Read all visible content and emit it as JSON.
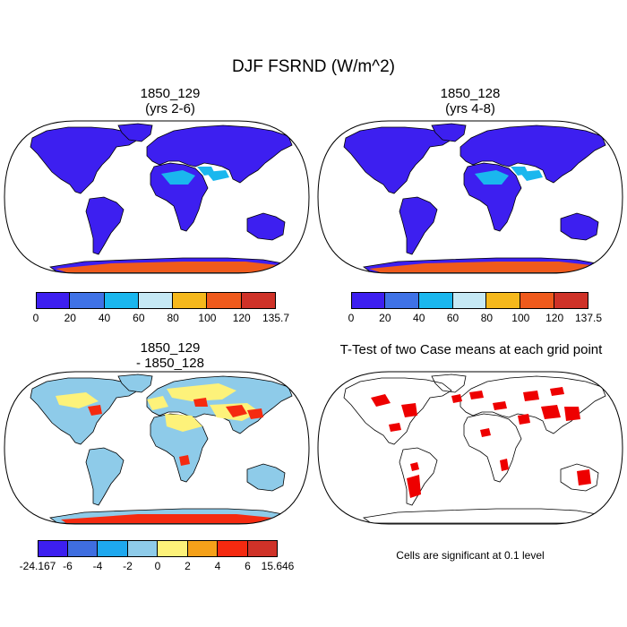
{
  "figure": {
    "title": "DJF FSRND (W/m^2)"
  },
  "panels": [
    {
      "id": "case1",
      "title_line1": "1850_129",
      "title_line2": "(yrs 2-6)",
      "colorbar": {
        "labels": [
          "0",
          "20",
          "40",
          "60",
          "80",
          "100",
          "120",
          "135.7"
        ],
        "colors": [
          "#3d1ff0",
          "#3f72e6",
          "#1ab7ee",
          "#c6e9f5",
          "#f5b81c",
          "#ef5a1c",
          "#cf3228"
        ]
      }
    },
    {
      "id": "case2",
      "title_line1": "1850_128",
      "title_line2": "(yrs 4-8)",
      "colorbar": {
        "labels": [
          "0",
          "20",
          "40",
          "60",
          "80",
          "100",
          "120",
          "137.5"
        ],
        "colors": [
          "#3d1ff0",
          "#3f72e6",
          "#1ab7ee",
          "#c6e9f5",
          "#f5b81c",
          "#ef5a1c",
          "#cf3228"
        ]
      }
    },
    {
      "id": "difference",
      "title_line1": "1850_129",
      "title_line2": "- 1850_128",
      "colorbar": {
        "labels": [
          "-24.167",
          "-6",
          "-4",
          "-2",
          "0",
          "2",
          "4",
          "6",
          "15.646"
        ],
        "colors": [
          "#3d1ff0",
          "#3f6ee0",
          "#1ea8ee",
          "#8ecbe9",
          "#fdf27a",
          "#f5a11a",
          "#f52a10",
          "#cf3228"
        ]
      }
    },
    {
      "id": "ttest",
      "title_line1": "T-Test of two Case means at each grid point",
      "title_line2": "",
      "note": "Cells are significant at 0.1 level",
      "significant_color": "#ee0000"
    }
  ],
  "map_colors": {
    "land_low": "#3d1ff0",
    "land_mid": "#1ab7ee",
    "ice": "#ef5a1c",
    "diff_base": "#8ecbe9",
    "diff_warm": "#fdf27a",
    "diff_hot": "#f52a10",
    "ocean": "#ffffff",
    "outline": "#000000"
  }
}
